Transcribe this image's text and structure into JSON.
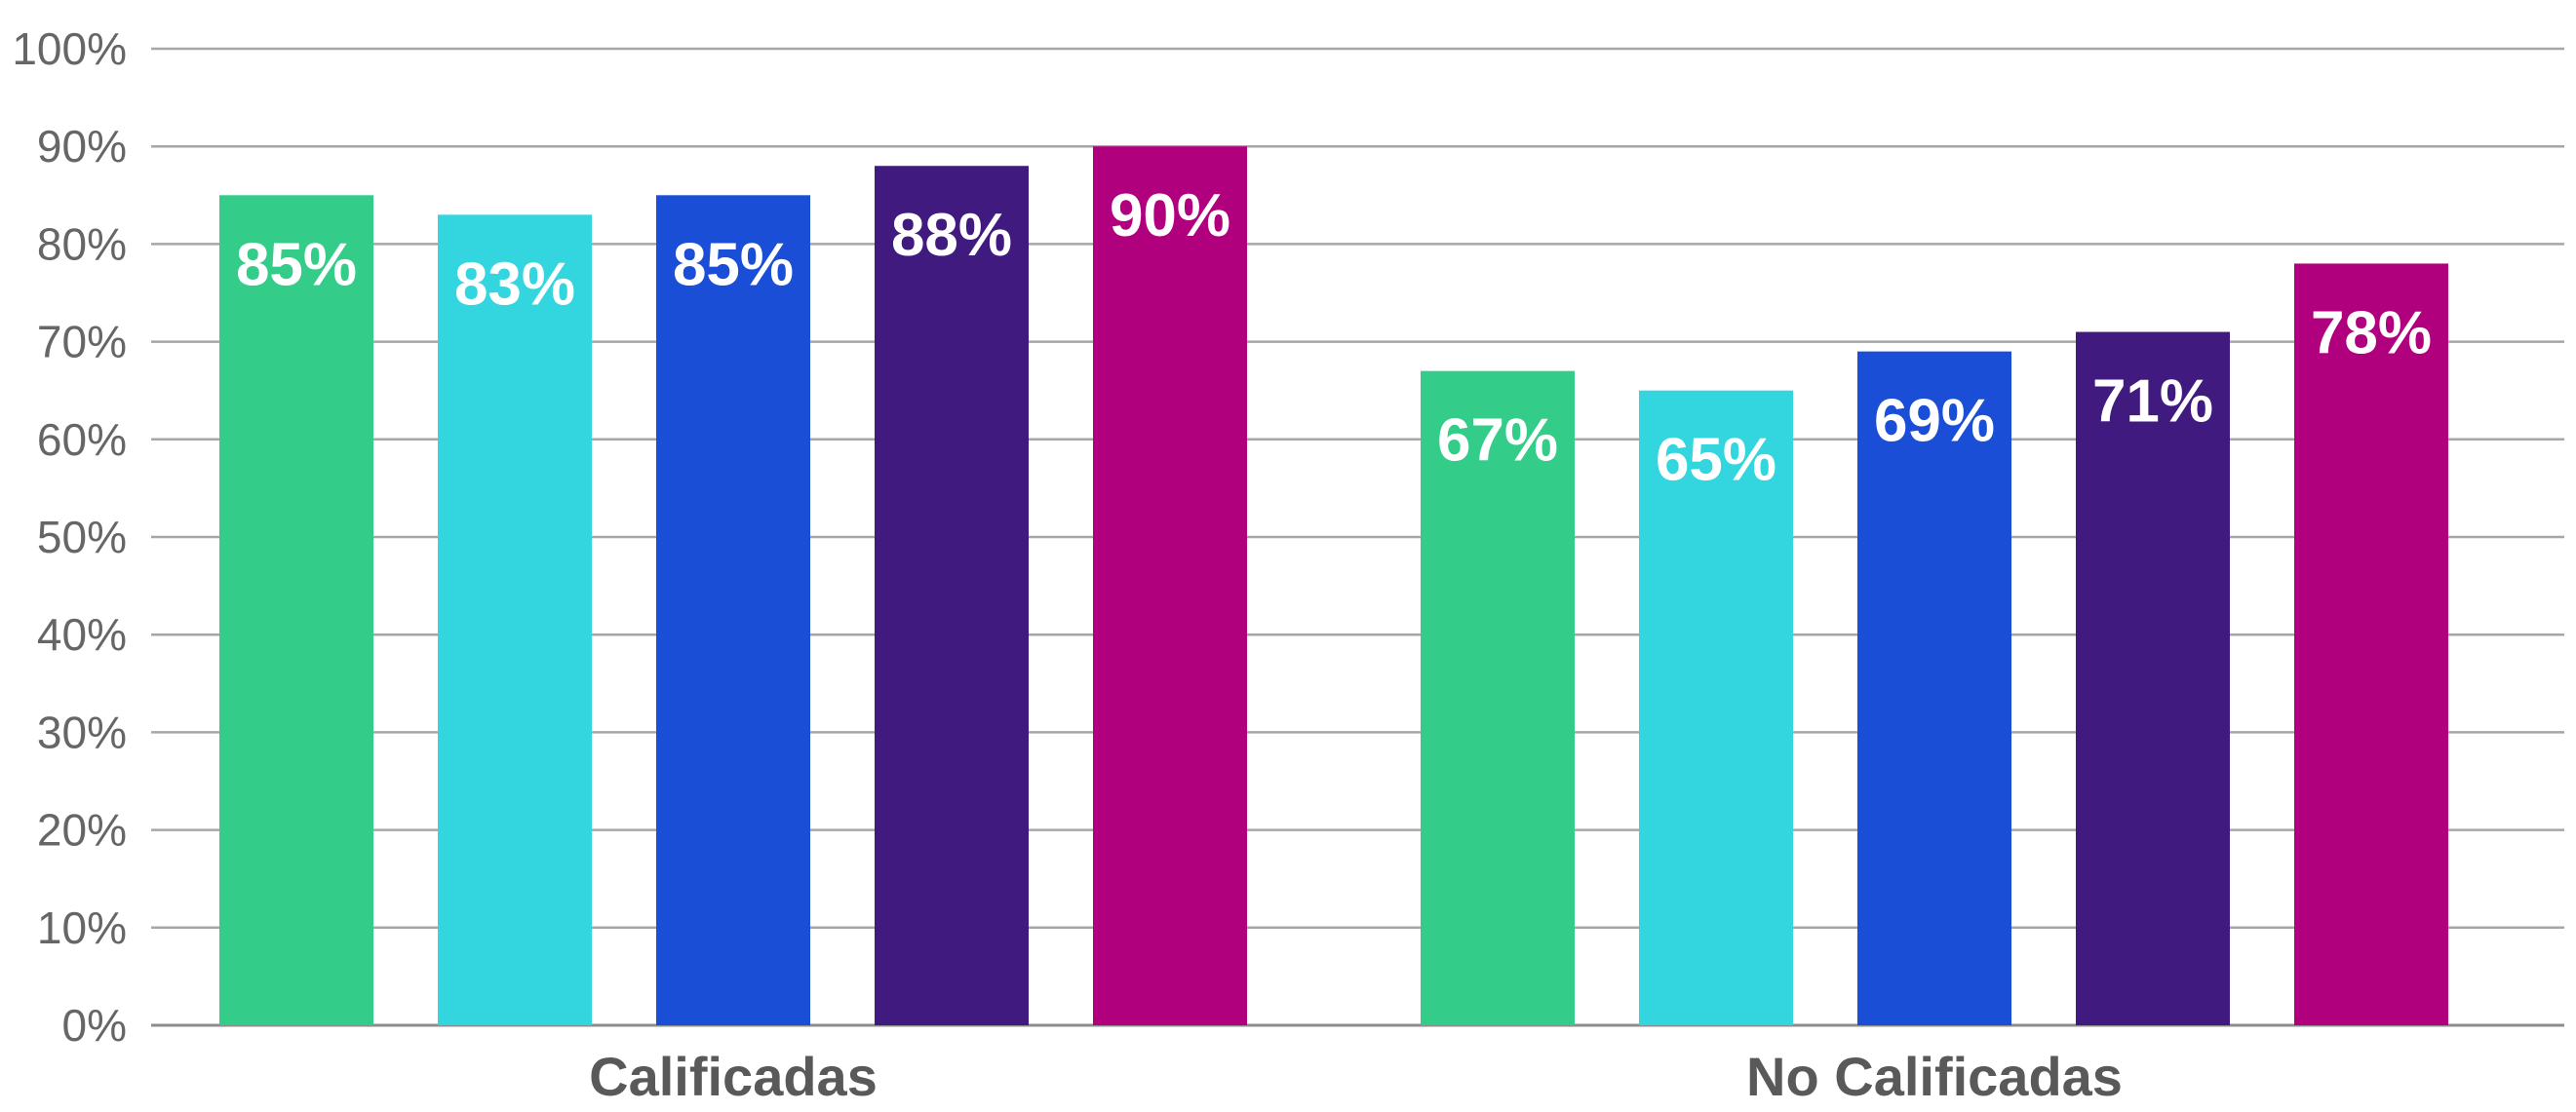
{
  "chart_data": {
    "type": "bar",
    "categories": [
      "Calificadas",
      "No Calificadas"
    ],
    "series": [
      {
        "values": [
          85,
          67
        ],
        "labels": [
          "85%",
          "67%"
        ],
        "color": "#33CC88"
      },
      {
        "values": [
          83,
          65
        ],
        "labels": [
          "83%",
          "65%"
        ],
        "color": "#33D6DE"
      },
      {
        "values": [
          85,
          69
        ],
        "labels": [
          "85%",
          "69%"
        ],
        "color": "#1A4ED6"
      },
      {
        "values": [
          88,
          71
        ],
        "labels": [
          "88%",
          "71%"
        ],
        "color": "#401A7E"
      },
      {
        "values": [
          90,
          78
        ],
        "labels": [
          "90%",
          "78%"
        ],
        "color": "#B0007E"
      }
    ],
    "ylim": [
      0,
      100
    ],
    "yticks": [
      0,
      10,
      20,
      30,
      40,
      50,
      60,
      70,
      80,
      90,
      100
    ],
    "ytick_labels": [
      "0%",
      "10%",
      "20%",
      "30%",
      "40%",
      "50%",
      "60%",
      "70%",
      "80%",
      "90%",
      "100%"
    ],
    "grid": true,
    "title": "",
    "xlabel": "",
    "ylabel": ""
  }
}
